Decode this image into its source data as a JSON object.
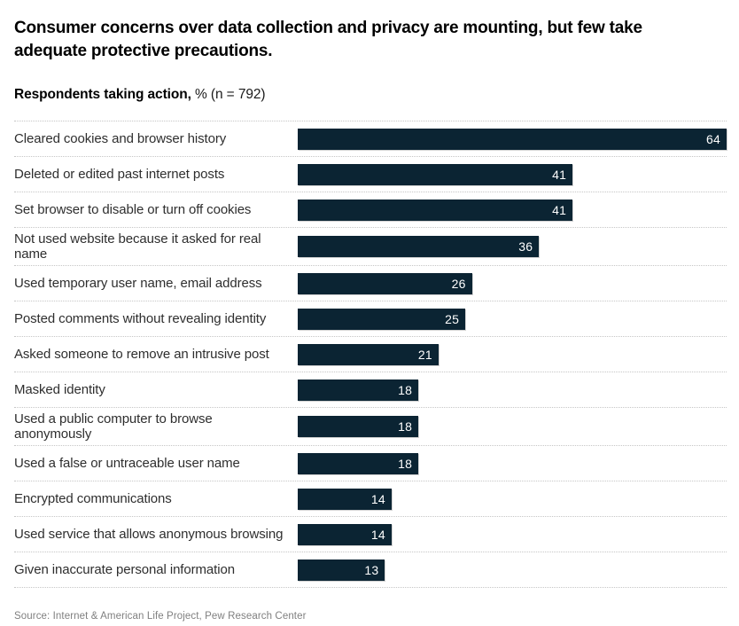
{
  "header": {
    "title": "Consumer concerns over data collection and privacy are mounting, but few take adequate protective precautions.",
    "subtitle_bold": "Respondents taking action,",
    "subtitle_rest": " % (n = 792)"
  },
  "chart_data": {
    "type": "bar",
    "orientation": "horizontal",
    "title": "Respondents taking action, % (n = 792)",
    "categories": [
      "Cleared cookies and browser history",
      "Deleted or edited past internet posts",
      "Set browser to disable or turn off cookies",
      "Not used website because it asked for real name",
      "Used temporary user name, email address",
      "Posted comments without revealing identity",
      "Asked someone to remove an intrusive post",
      "Masked identity",
      "Used a public computer to browse anonymously",
      "Used a false or untraceable user name",
      "Encrypted communications",
      "Used service that allows anonymous browsing",
      "Given inaccurate personal information"
    ],
    "values": [
      64,
      41,
      41,
      36,
      26,
      25,
      21,
      18,
      18,
      18,
      14,
      14,
      13
    ],
    "xlim": [
      0,
      64
    ],
    "value_labels_position": "inside-right",
    "grid": "off",
    "row_separators": "dotted",
    "bar_color": "#0b2433",
    "value_label_color": "#ffffff",
    "separator_color": "#c6c6c6"
  },
  "footer": {
    "source": "Source: Internet & American Life Project, Pew Research Center"
  }
}
